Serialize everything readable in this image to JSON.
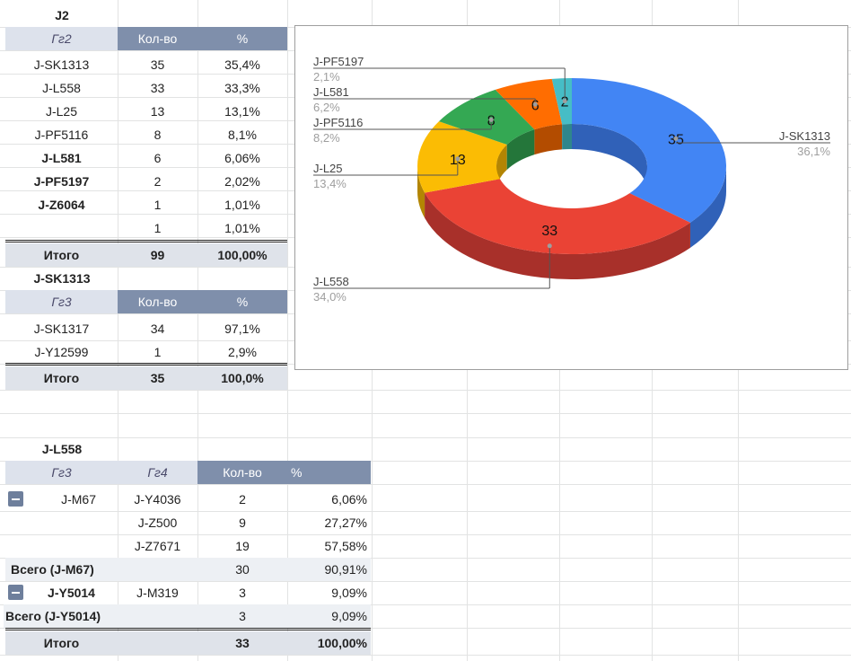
{
  "j2": {
    "title": "J2",
    "headers": [
      "Гг2",
      "Кол-во",
      "%"
    ],
    "rows": [
      {
        "name": "J-SK1313",
        "count": "35",
        "pct": "35,4%",
        "bold": false
      },
      {
        "name": "J-L558",
        "count": "33",
        "pct": "33,3%",
        "bold": false
      },
      {
        "name": "J-L25",
        "count": "13",
        "pct": "13,1%",
        "bold": false
      },
      {
        "name": "J-PF5116",
        "count": "8",
        "pct": "8,1%",
        "bold": false
      },
      {
        "name": "J-L581",
        "count": "6",
        "pct": "6,06%",
        "bold": true
      },
      {
        "name": "J-PF5197",
        "count": "2",
        "pct": "2,02%",
        "bold": true
      },
      {
        "name": "J-Z6064",
        "count": "1",
        "pct": "1,01%",
        "bold": true
      },
      {
        "name": "",
        "count": "1",
        "pct": "1,01%",
        "bold": false
      }
    ],
    "total": {
      "label": "Итого",
      "count": "99",
      "pct": "100,00%"
    }
  },
  "jsk": {
    "title": "J-SK1313",
    "headers": [
      "Гг3",
      "Кол-во",
      "%"
    ],
    "rows": [
      {
        "name": "J-SK1317",
        "count": "34",
        "pct": "97,1%"
      },
      {
        "name": "J-Y12599",
        "count": "1",
        "pct": "2,9%"
      }
    ],
    "total": {
      "label": "Итого",
      "count": "35",
      "pct": "100,0%"
    }
  },
  "jl": {
    "title": "J-L558",
    "headers": [
      "Гг3",
      "Гг4",
      "Кол-во",
      "%"
    ],
    "r1": {
      "g3": "J-M67",
      "g4": "J-Y4036",
      "count": "2",
      "pct": "6,06%"
    },
    "r2": {
      "g4": "J-Z500",
      "count": "9",
      "pct": "27,27%"
    },
    "r3": {
      "g4": "J-Z7671",
      "count": "19",
      "pct": "57,58%"
    },
    "s1": {
      "label": "Всего (J-M67)",
      "count": "30",
      "pct": "90,91%"
    },
    "r4": {
      "g3": "J-Y5014",
      "g4": "J-M319",
      "count": "3",
      "pct": "9,09%"
    },
    "s2": {
      "label": "Всего (J-Y5014)",
      "count": "3",
      "pct": "9,09%"
    },
    "total": {
      "label": "Итого",
      "count": "33",
      "pct": "100,00%"
    }
  },
  "colors": {
    "header": "#7f8fab",
    "total": "#dfe3ea"
  },
  "chart_data": {
    "type": "pie",
    "style": "3d-donut",
    "slices": [
      {
        "label": "J-SK1313",
        "value": 35,
        "pct": "36,1%",
        "color": "#4285f4",
        "side": "#3061b8"
      },
      {
        "label": "J-L558",
        "value": 33,
        "pct": "34,0%",
        "color": "#ea4335",
        "side": "#a8302a"
      },
      {
        "label": "J-L25",
        "value": 13,
        "pct": "13,4%",
        "color": "#fbbc04",
        "side": "#b38503"
      },
      {
        "label": "J-PF5116",
        "value": 8,
        "pct": "8,2%",
        "color": "#34a853",
        "side": "#24763a"
      },
      {
        "label": "J-L581",
        "value": 6,
        "pct": "6,2%",
        "color": "#ff6d01",
        "side": "#b34c00"
      },
      {
        "label": "J-PF5197",
        "value": 2,
        "pct": "2,1%",
        "color": "#46bdc6",
        "side": "#2f868c"
      }
    ]
  }
}
